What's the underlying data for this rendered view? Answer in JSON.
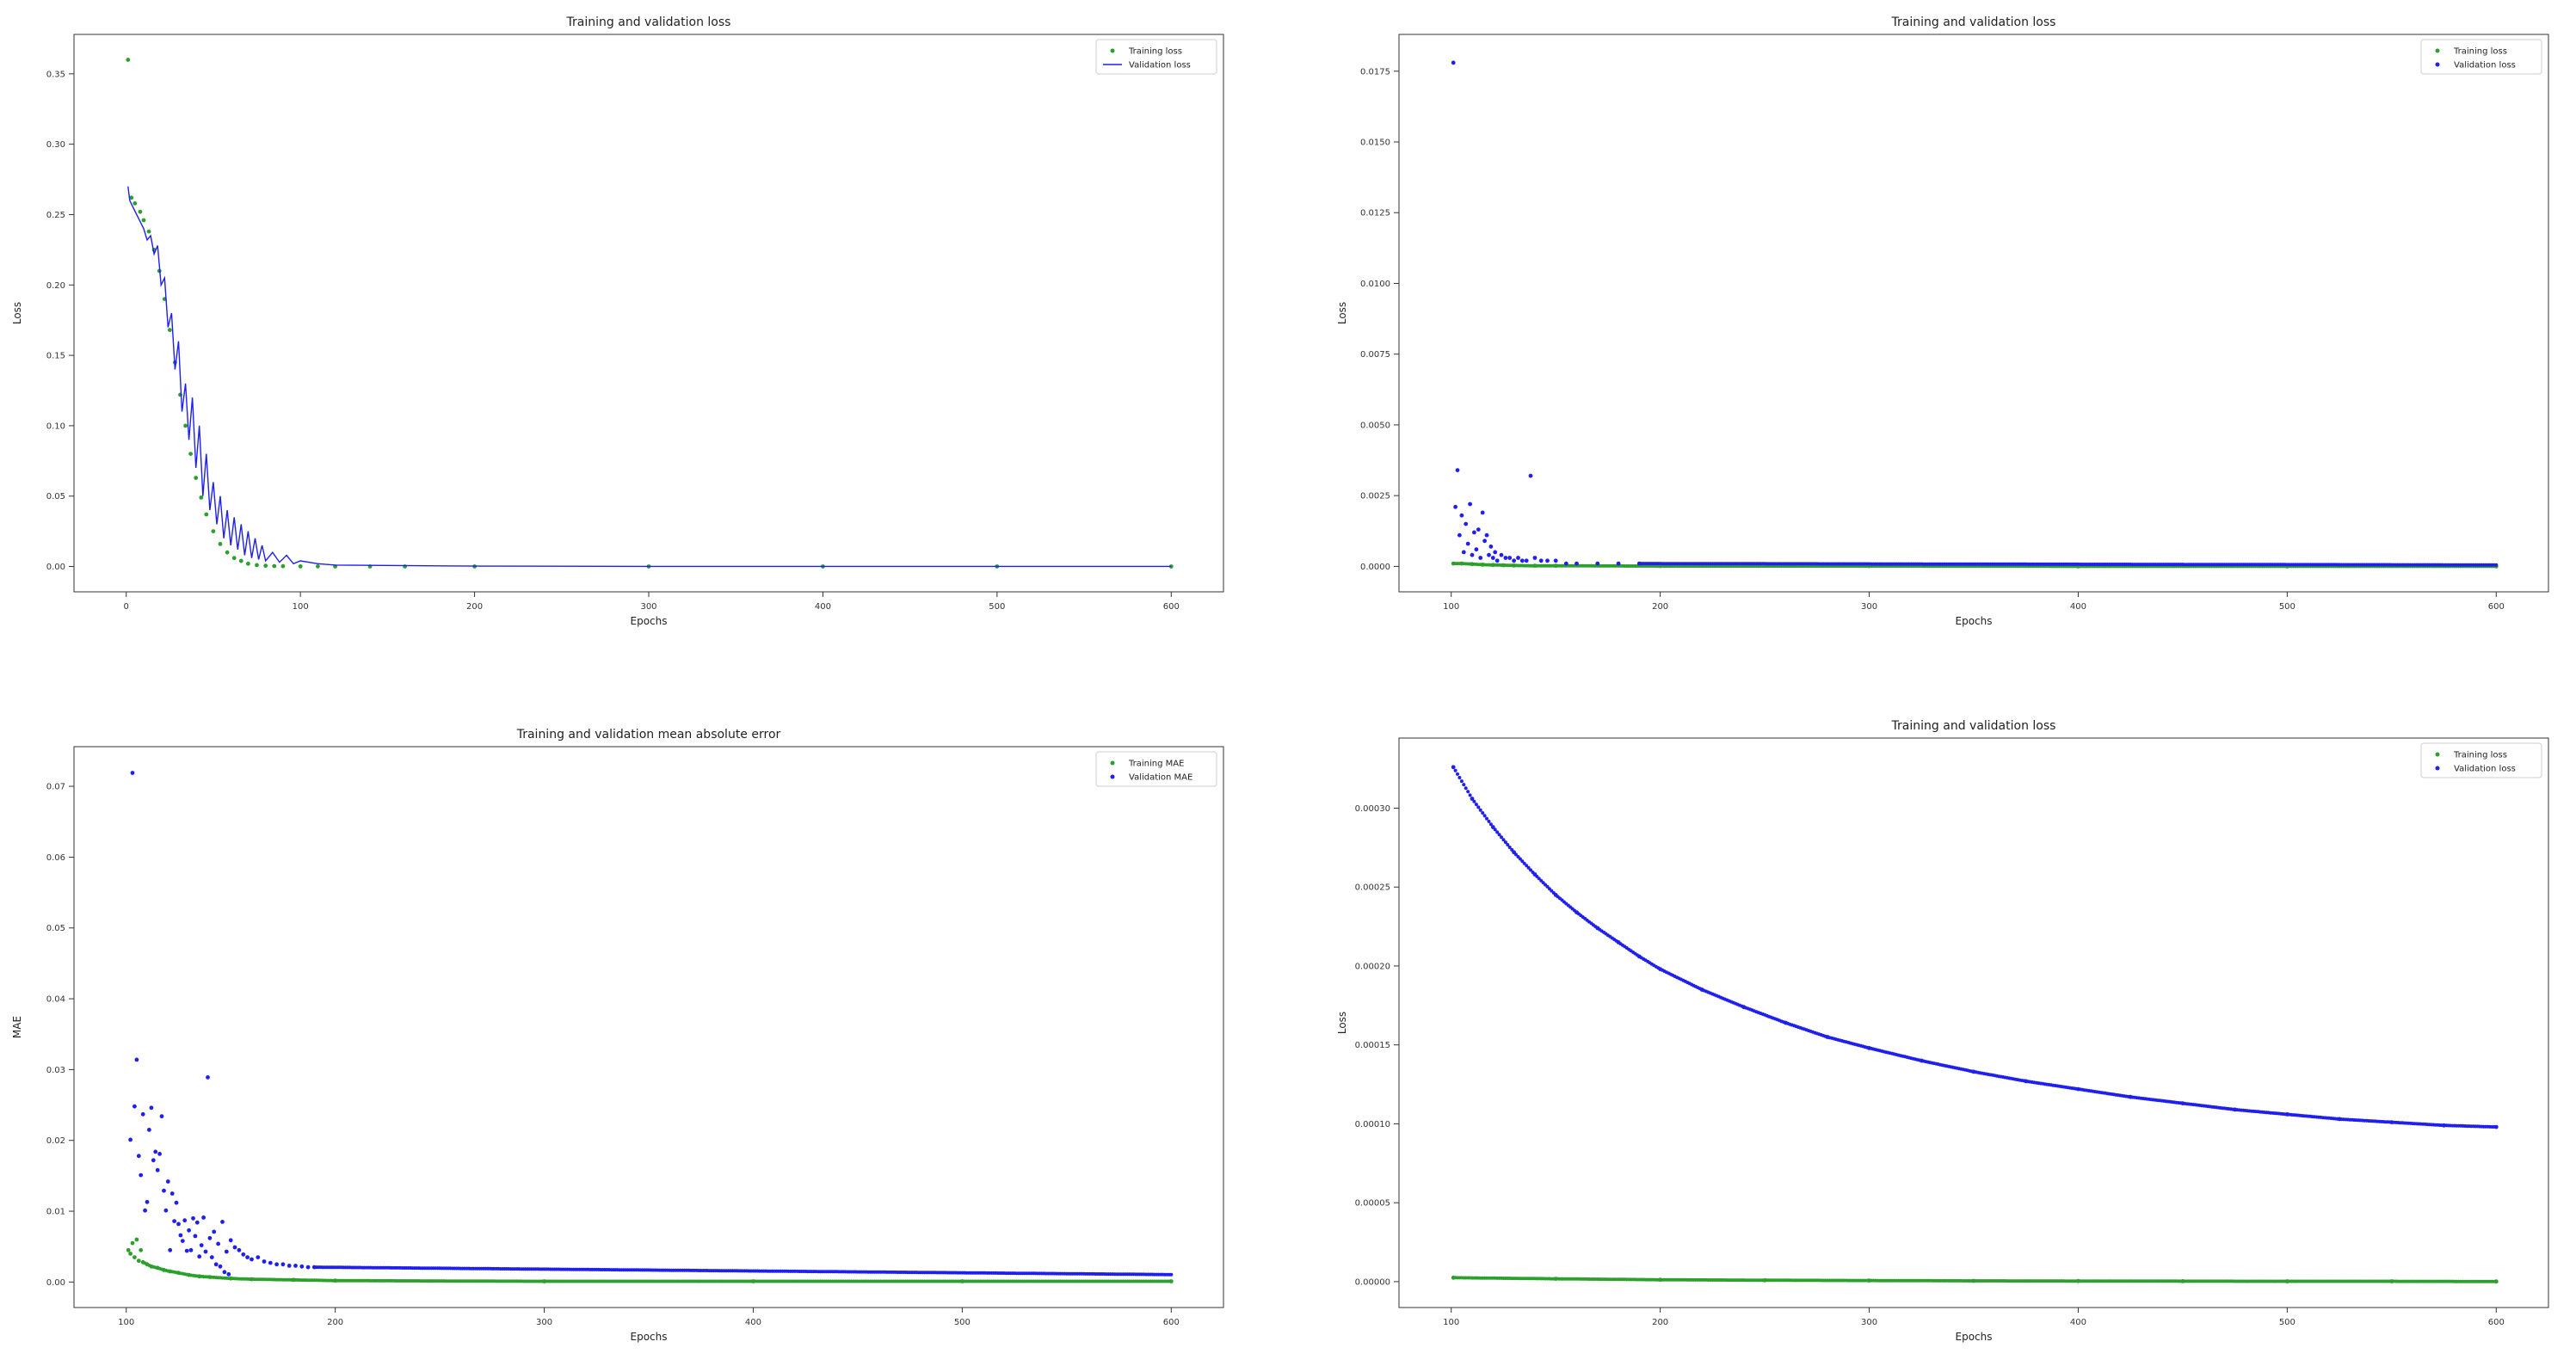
{
  "chart_data": [
    {
      "type": "line",
      "title": "Training and validation loss",
      "xlabel": "Epochs",
      "ylabel": "Loss",
      "xlim": [
        -30,
        630
      ],
      "ylim": [
        -0.018,
        0.378
      ],
      "xticks": [
        0,
        100,
        200,
        300,
        400,
        500,
        600
      ],
      "xtick_labels": [
        "0",
        "100",
        "200",
        "300",
        "400",
        "500",
        "600"
      ],
      "yticks": [
        0.0,
        0.05,
        0.1,
        0.15,
        0.2,
        0.25,
        0.3,
        0.35
      ],
      "ytick_labels": [
        "0.00",
        "0.05",
        "0.10",
        "0.15",
        "0.20",
        "0.25",
        "0.30",
        "0.35"
      ],
      "legend_position": "top-right",
      "series": [
        {
          "name": "Training loss",
          "style": "dots",
          "color": "#2ca02c",
          "x": [
            1,
            3,
            5,
            8,
            10,
            13,
            16,
            19,
            22,
            25,
            28,
            31,
            34,
            37,
            40,
            43,
            46,
            50,
            54,
            58,
            62,
            66,
            70,
            75,
            80,
            85,
            90,
            100,
            110,
            120,
            140,
            160,
            200,
            300,
            400,
            500,
            600
          ],
          "values": [
            0.36,
            0.262,
            0.258,
            0.252,
            0.246,
            0.238,
            0.225,
            0.21,
            0.19,
            0.168,
            0.145,
            0.122,
            0.1,
            0.08,
            0.063,
            0.049,
            0.037,
            0.025,
            0.016,
            0.01,
            0.006,
            0.004,
            0.002,
            0.001,
            0.0005,
            0.0003,
            0.0002,
            0.0001,
            0.0001,
            0.0,
            0.0,
            0.0,
            0.0,
            0.0,
            0.0,
            0.0,
            0.0
          ]
        },
        {
          "name": "Validation loss",
          "style": "line",
          "color": "#1f1fef",
          "x": [
            1,
            2,
            4,
            6,
            8,
            10,
            12,
            14,
            16,
            18,
            20,
            22,
            24,
            26,
            28,
            30,
            32,
            34,
            36,
            38,
            40,
            42,
            44,
            46,
            48,
            50,
            52,
            54,
            56,
            58,
            60,
            62,
            64,
            66,
            68,
            70,
            72,
            74,
            76,
            78,
            80,
            84,
            88,
            92,
            96,
            100,
            110,
            120,
            140,
            200,
            300,
            400,
            500,
            600
          ],
          "values": [
            0.27,
            0.26,
            0.255,
            0.25,
            0.245,
            0.24,
            0.232,
            0.235,
            0.222,
            0.228,
            0.2,
            0.205,
            0.17,
            0.18,
            0.14,
            0.16,
            0.11,
            0.13,
            0.09,
            0.12,
            0.07,
            0.1,
            0.05,
            0.08,
            0.04,
            0.06,
            0.03,
            0.05,
            0.02,
            0.04,
            0.015,
            0.035,
            0.012,
            0.03,
            0.008,
            0.025,
            0.006,
            0.02,
            0.005,
            0.015,
            0.004,
            0.01,
            0.003,
            0.008,
            0.002,
            0.004,
            0.002,
            0.001,
            0.0008,
            0.0003,
            0.0001,
            0.0001,
            0.0001,
            0.0001
          ]
        }
      ]
    },
    {
      "type": "scatter",
      "title": "Training and validation loss",
      "xlabel": "Epochs",
      "ylabel": "Loss",
      "xlim": [
        75,
        625
      ],
      "ylim": [
        -0.0009,
        0.0188
      ],
      "xticks": [
        100,
        200,
        300,
        400,
        500,
        600
      ],
      "xtick_labels": [
        "100",
        "200",
        "300",
        "400",
        "500",
        "600"
      ],
      "yticks": [
        0.0,
        0.0025,
        0.005,
        0.0075,
        0.01,
        0.0125,
        0.015,
        0.0175
      ],
      "ytick_labels": [
        "0.0000",
        "0.0025",
        "0.0050",
        "0.0075",
        "0.0100",
        "0.0125",
        "0.0150",
        "0.0175"
      ],
      "legend_position": "top-right",
      "series": [
        {
          "name": "Training loss",
          "style": "dots",
          "color": "#2ca02c",
          "x": [
            101,
            105,
            110,
            115,
            120,
            125,
            130,
            140,
            150,
            200,
            300,
            400,
            500,
            600
          ],
          "values": [
            0.0001,
            0.0001,
            8e-05,
            6e-05,
            5e-05,
            4e-05,
            3e-05,
            2e-05,
            2e-05,
            1e-05,
            1e-05,
            0.0,
            0.0,
            0.0
          ],
          "dense": true
        },
        {
          "name": "Validation loss",
          "style": "dots",
          "color": "#1f1fef",
          "x": [
            101,
            102,
            103,
            104,
            105,
            106,
            107,
            108,
            109,
            110,
            111,
            112,
            113,
            114,
            115,
            116,
            117,
            118,
            119,
            120,
            121,
            122,
            124,
            126,
            128,
            130,
            132,
            134,
            136,
            138,
            140,
            143,
            146,
            150,
            155,
            160,
            170,
            180,
            190
          ],
          "values": [
            0.0178,
            0.0021,
            0.0034,
            0.0011,
            0.0018,
            0.0005,
            0.0015,
            0.0008,
            0.0022,
            0.0004,
            0.0012,
            0.0006,
            0.0013,
            0.0003,
            0.0019,
            0.0009,
            0.0011,
            0.0004,
            0.0007,
            0.0003,
            0.0005,
            0.0002,
            0.0004,
            0.0003,
            0.0003,
            0.0002,
            0.0003,
            0.0002,
            0.0002,
            0.0032,
            0.0003,
            0.0002,
            0.0002,
            0.0002,
            0.0001,
            0.0001,
            0.0001,
            0.0001,
            0.0001
          ],
          "dense_tail": true
        }
      ]
    },
    {
      "type": "scatter",
      "title": "Training and validation mean absolute error",
      "xlabel": "Epochs",
      "ylabel": "MAE",
      "xlim": [
        75,
        625
      ],
      "ylim": [
        -0.0036,
        0.0756
      ],
      "xticks": [
        100,
        200,
        300,
        400,
        500,
        600
      ],
      "xtick_labels": [
        "100",
        "200",
        "300",
        "400",
        "500",
        "600"
      ],
      "yticks": [
        0.0,
        0.01,
        0.02,
        0.03,
        0.04,
        0.05,
        0.06,
        0.07
      ],
      "ytick_labels": [
        "0.00",
        "0.01",
        "0.02",
        "0.03",
        "0.04",
        "0.05",
        "0.06",
        "0.07"
      ],
      "legend_position": "top-right",
      "series": [
        {
          "name": "Training MAE",
          "style": "dots",
          "color": "#2ca02c",
          "x": [
            101,
            102,
            103,
            104,
            105,
            106,
            107,
            108,
            110,
            112,
            115,
            118,
            121,
            125,
            130,
            135,
            140,
            150,
            160,
            180,
            200,
            300,
            400,
            500,
            600
          ],
          "values": [
            0.0045,
            0.004,
            0.0055,
            0.0035,
            0.006,
            0.003,
            0.0045,
            0.0028,
            0.0025,
            0.0022,
            0.002,
            0.0017,
            0.0015,
            0.0013,
            0.001,
            0.0008,
            0.0007,
            0.0005,
            0.0004,
            0.0003,
            0.0002,
            0.0001,
            0.0001,
            0.0001,
            0.0001
          ],
          "dense": true
        },
        {
          "name": "Validation MAE",
          "style": "dots",
          "color": "#1f1fef",
          "x": [
            102,
            103,
            104,
            105,
            106,
            107,
            108,
            109,
            110,
            111,
            112,
            113,
            114,
            115,
            116,
            117,
            118,
            119,
            120,
            121,
            122,
            123,
            124,
            125,
            126,
            127,
            128,
            129,
            130,
            131,
            132,
            133,
            134,
            135,
            136,
            137,
            138,
            139,
            140,
            141,
            142,
            143,
            144,
            145,
            146,
            147,
            148,
            149,
            150,
            152,
            154,
            156,
            158,
            160,
            163,
            166,
            169,
            172,
            175,
            178,
            181,
            184,
            187,
            190
          ],
          "values": [
            0.0201,
            0.0719,
            0.0248,
            0.0314,
            0.0178,
            0.0151,
            0.0237,
            0.0101,
            0.0113,
            0.0215,
            0.0246,
            0.0172,
            0.0184,
            0.0158,
            0.0181,
            0.0234,
            0.0129,
            0.0101,
            0.0142,
            0.0045,
            0.0125,
            0.0086,
            0.0112,
            0.0082,
            0.0066,
            0.0058,
            0.0087,
            0.0044,
            0.0073,
            0.0045,
            0.009,
            0.0065,
            0.0084,
            0.0036,
            0.0052,
            0.0091,
            0.0043,
            0.0289,
            0.0062,
            0.0035,
            0.0071,
            0.0025,
            0.0054,
            0.0022,
            0.0085,
            0.0014,
            0.0043,
            0.0011,
            0.0059,
            0.0049,
            0.0045,
            0.0039,
            0.0035,
            0.0032,
            0.0035,
            0.0029,
            0.0027,
            0.0025,
            0.0025,
            0.0023,
            0.0023,
            0.0022,
            0.0021,
            0.0021
          ],
          "dense_tail": true
        }
      ]
    },
    {
      "type": "scatter",
      "title": "Training and validation loss",
      "xlabel": "Epochs",
      "ylabel": "Loss",
      "xlim": [
        75,
        625
      ],
      "ylim": [
        -1.64e-05,
        0.0003444
      ],
      "xticks": [
        100,
        200,
        300,
        400,
        500,
        600
      ],
      "xtick_labels": [
        "100",
        "200",
        "300",
        "400",
        "500",
        "600"
      ],
      "yticks": [
        0.0,
        5e-05,
        0.0001,
        0.00015,
        0.0002,
        0.00025,
        0.0003
      ],
      "ytick_labels": [
        "0.00000",
        "0.00005",
        "0.00010",
        "0.00015",
        "0.00020",
        "0.00025",
        "0.00030"
      ],
      "legend_position": "top-right",
      "series": [
        {
          "name": "Training loss",
          "style": "dots",
          "color": "#2ca02c",
          "x": [
            101,
            150,
            200,
            250,
            300,
            350,
            400,
            450,
            500,
            550,
            600
          ],
          "values": [
            2.5e-06,
            1.8e-06,
            1.2e-06,
            9e-07,
            7e-07,
            5e-07,
            4e-07,
            3e-07,
            2e-07,
            2e-07,
            1e-07
          ],
          "dense": true
        },
        {
          "name": "Validation loss",
          "style": "dots",
          "color": "#1f1fef",
          "x": [
            101,
            110,
            120,
            130,
            140,
            150,
            160,
            170,
            180,
            190,
            200,
            220,
            240,
            260,
            280,
            300,
            325,
            350,
            375,
            400,
            425,
            450,
            475,
            500,
            525,
            550,
            575,
            600
          ],
          "values": [
            0.000326,
            0.000306,
            0.000288,
            0.000272,
            0.000258,
            0.000245,
            0.000234,
            0.000224,
            0.000215,
            0.000206,
            0.000198,
            0.000185,
            0.000174,
            0.000164,
            0.000155,
            0.000148,
            0.00014,
            0.000133,
            0.000127,
            0.000122,
            0.000117,
            0.000113,
            0.000109,
            0.000106,
            0.000103,
            0.000101,
            9.9e-05,
            9.8e-05
          ],
          "dense": true
        }
      ]
    }
  ]
}
